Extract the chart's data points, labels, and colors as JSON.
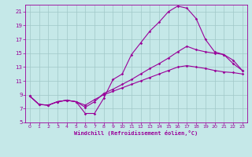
{
  "xlabel": "Windchill (Refroidissement éolien,°C)",
  "background_color": "#c5e8e8",
  "grid_color": "#a0c8c8",
  "line_color": "#990099",
  "xlim": [
    -0.5,
    23.5
  ],
  "ylim": [
    5,
    22
  ],
  "xticks": [
    0,
    1,
    2,
    3,
    4,
    5,
    6,
    7,
    8,
    9,
    10,
    11,
    12,
    13,
    14,
    15,
    16,
    17,
    18,
    19,
    20,
    21,
    22,
    23
  ],
  "yticks": [
    5,
    7,
    9,
    11,
    13,
    15,
    17,
    19,
    21
  ],
  "line1_x": [
    0,
    1,
    2,
    3,
    4,
    5,
    6,
    7,
    8,
    9,
    10,
    11,
    12,
    13,
    14,
    15,
    16,
    17,
    18,
    19,
    20,
    21,
    22,
    23
  ],
  "line1_y": [
    8.8,
    7.6,
    7.5,
    8.0,
    8.2,
    8.0,
    6.3,
    6.3,
    8.5,
    11.2,
    12.0,
    14.8,
    16.5,
    18.2,
    19.5,
    21.0,
    21.8,
    21.5,
    20.0,
    17.0,
    15.2,
    14.8,
    13.5,
    12.5
  ],
  "line2_x": [
    0,
    1,
    2,
    3,
    4,
    5,
    6,
    7,
    8,
    9,
    10,
    11,
    12,
    13,
    14,
    15,
    16,
    17,
    18,
    19,
    20,
    21,
    22,
    23
  ],
  "line2_y": [
    8.8,
    7.6,
    7.5,
    8.0,
    8.2,
    8.0,
    7.2,
    8.0,
    9.2,
    9.8,
    10.5,
    11.2,
    12.0,
    12.8,
    13.5,
    14.3,
    15.2,
    16.0,
    15.5,
    15.2,
    15.0,
    14.8,
    14.0,
    12.5
  ],
  "line3_x": [
    0,
    1,
    2,
    3,
    4,
    5,
    6,
    7,
    8,
    9,
    10,
    11,
    12,
    13,
    14,
    15,
    16,
    17,
    18,
    19,
    20,
    21,
    22,
    23
  ],
  "line3_y": [
    8.8,
    7.6,
    7.5,
    8.0,
    8.2,
    8.0,
    7.5,
    8.3,
    9.0,
    9.5,
    10.0,
    10.5,
    11.0,
    11.5,
    12.0,
    12.5,
    13.0,
    13.2,
    13.0,
    12.8,
    12.5,
    12.3,
    12.2,
    12.0
  ]
}
